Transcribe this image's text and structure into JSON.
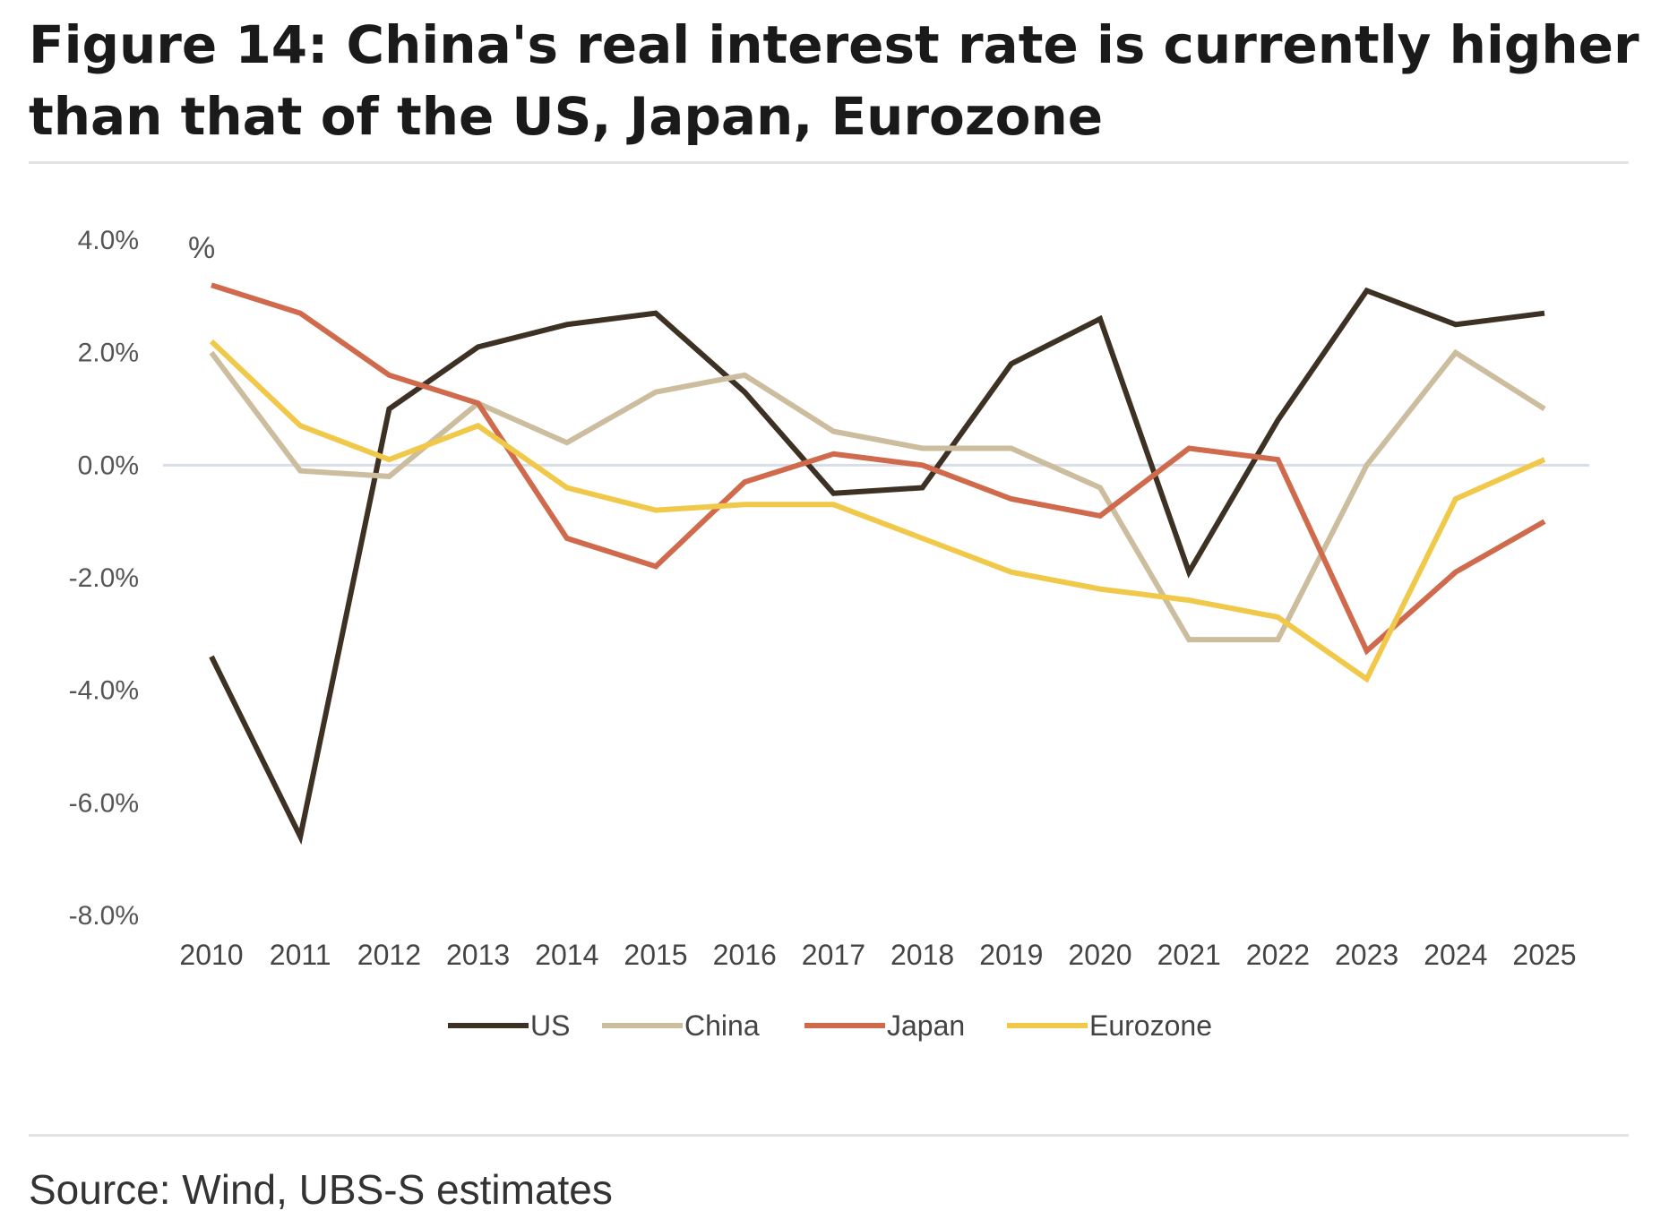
{
  "figure": {
    "title": "Figure 14: China's real interest rate is currently higher than that of the US, Japan, Eurozone",
    "source": "Source: Wind, UBS-S estimates"
  },
  "chart_data": {
    "type": "line",
    "title": "Figure 14: China's real interest rate is currently higher than that of the US, Japan, Eurozone",
    "ylabel": "%",
    "xlabel": "",
    "ylim": [
      -8,
      4
    ],
    "yticks": [
      4,
      2,
      0,
      -2,
      -4,
      -6,
      -8
    ],
    "ytick_labels": [
      "4.0%",
      "2.0%",
      "0.0%",
      "-2.0%",
      "-4.0%",
      "-6.0%",
      "-8.0%"
    ],
    "grid": false,
    "legend_position": "bottom",
    "categories": [
      "2010",
      "2011",
      "2012",
      "2013",
      "2014",
      "2015",
      "2016",
      "2017",
      "2018",
      "2019",
      "2020",
      "2021",
      "2022",
      "2023",
      "2024",
      "2025"
    ],
    "series": [
      {
        "name": "US",
        "color": "#3d3124",
        "values": [
          -3.4,
          -6.6,
          1.0,
          2.1,
          2.5,
          2.7,
          1.3,
          -0.5,
          -0.4,
          1.8,
          2.6,
          -1.9,
          0.8,
          3.1,
          2.5,
          2.7
        ]
      },
      {
        "name": "China",
        "color": "#cbbd9e",
        "values": [
          2.0,
          -0.1,
          -0.2,
          1.1,
          0.4,
          1.3,
          1.6,
          0.6,
          0.3,
          0.3,
          -0.4,
          -3.1,
          -3.1,
          0.0,
          2.0,
          1.0
        ]
      },
      {
        "name": "Japan",
        "color": "#d06a4d",
        "values": [
          3.2,
          2.7,
          1.6,
          1.1,
          -1.3,
          -1.8,
          -0.3,
          0.2,
          0.0,
          -0.6,
          -0.9,
          0.3,
          0.1,
          -3.3,
          -1.9,
          -1.0
        ]
      },
      {
        "name": "Eurozone",
        "color": "#f0c94a",
        "values": [
          2.2,
          0.7,
          0.1,
          0.7,
          -0.4,
          -0.8,
          -0.7,
          -0.7,
          -1.3,
          -1.9,
          -2.2,
          -2.4,
          -2.7,
          -3.8,
          -0.6,
          0.1
        ]
      }
    ]
  }
}
